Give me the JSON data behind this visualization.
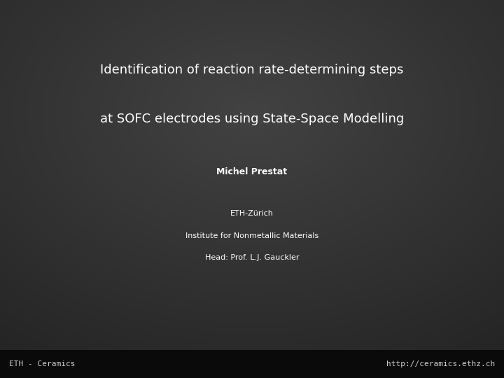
{
  "line1": "Identification of reaction rate-determining steps",
  "line2": "at SOFC electrodes using State-Space Modelling",
  "author": "Michel Prestat",
  "affil1": "ETH-Zürich",
  "affil2": "Institute for Nonmetallic Materials",
  "affil3": "Head: Prof. L.J. Gauckler",
  "footer_left": "ETH - Ceramics",
  "footer_right": "http://ceramics.ethz.ch",
  "text_color": "#ffffff",
  "footer_text_color": "#cccccc",
  "title_fontsize": 13,
  "author_fontsize": 9,
  "affil_fontsize": 8,
  "footer_fontsize": 8
}
